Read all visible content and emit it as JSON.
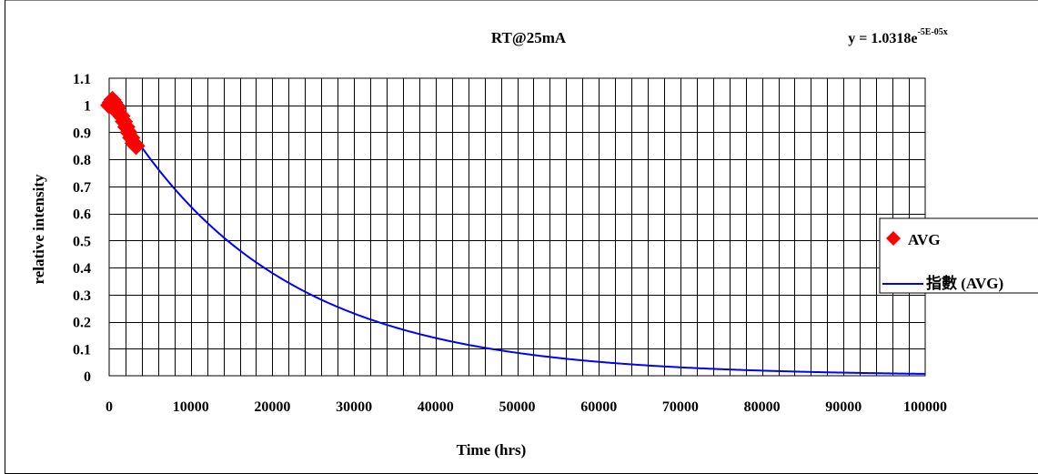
{
  "chart_data": {
    "type": "scatter",
    "title": "RT@25mA",
    "equation": {
      "prefix": "y = 1.0318e",
      "exponent": "-5E-05x"
    },
    "xlabel": "Time (hrs)",
    "ylabel": "relative intensity",
    "xlim": [
      0,
      100000
    ],
    "ylim": [
      0,
      1.1
    ],
    "x_tick_step": 2000,
    "x_tick_labels": [
      "0",
      "10000",
      "20000",
      "30000",
      "40000",
      "50000",
      "60000",
      "70000",
      "80000",
      "90000",
      "100000"
    ],
    "y_tick_labels": [
      "0",
      "0.1",
      "0.2",
      "0.3",
      "0.4",
      "0.5",
      "0.6",
      "0.7",
      "0.8",
      "0.9",
      "1",
      "1.1"
    ],
    "grid": true,
    "legend_position": "right",
    "series": [
      {
        "name": "AVG",
        "kind": "scatter",
        "marker": "diamond",
        "color": "#ff0000",
        "x": [
          0,
          200,
          400,
          600,
          800,
          1000,
          1200,
          1500,
          1800,
          2100,
          2400,
          2700,
          3000,
          3300
        ],
        "y": [
          1.0,
          1.01,
          1.02,
          1.01,
          1.0,
          0.99,
          0.97,
          0.96,
          0.94,
          0.92,
          0.9,
          0.88,
          0.86,
          0.85
        ]
      },
      {
        "name": "指數 (AVG)",
        "kind": "trendline",
        "color": "#0000ff",
        "fit": {
          "a": 1.0318,
          "b": -5e-05
        }
      }
    ]
  }
}
